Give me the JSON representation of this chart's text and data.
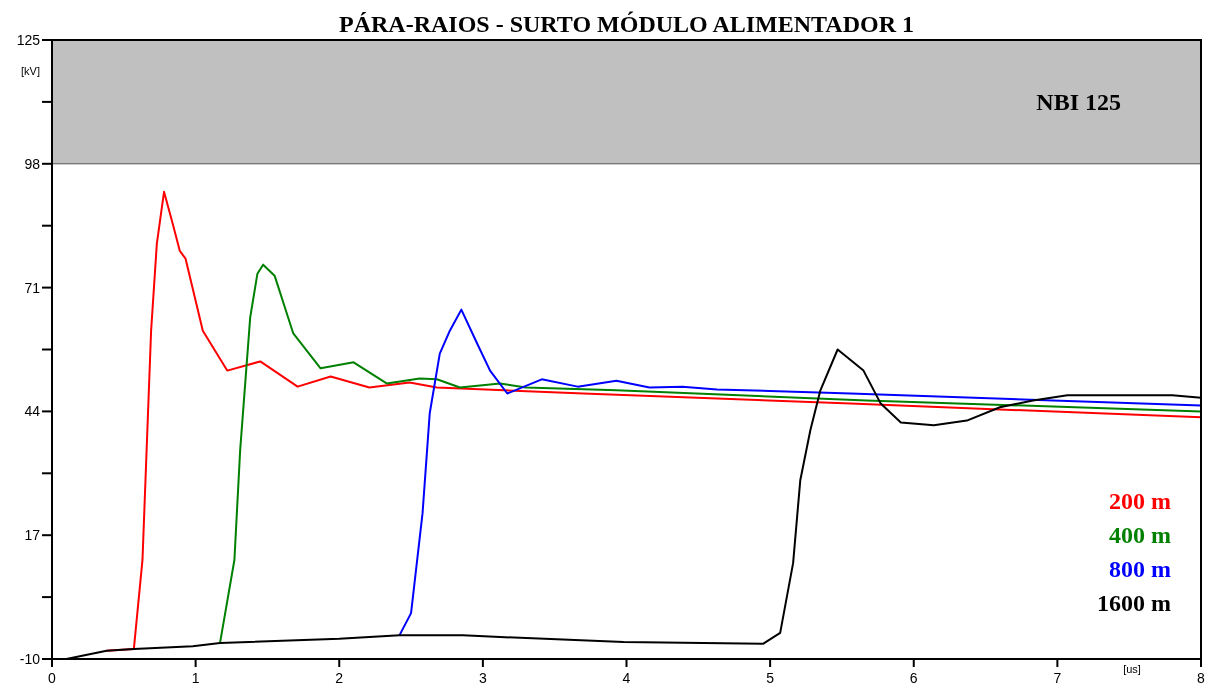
{
  "chart_data": {
    "type": "line",
    "title": "PÁRA-RAIOS - SURTO MÓDULO ALIMENTADOR 1",
    "xlabel": "[us]",
    "ylabel": "[kV]",
    "xlim": [
      0,
      8
    ],
    "xticks": [
      0,
      1,
      2,
      3,
      4,
      5,
      6,
      7,
      8
    ],
    "ylim": [
      -10,
      125
    ],
    "yticks": [
      -10,
      {
        "value": 3.5,
        "label": null
      },
      17,
      {
        "value": 30.5,
        "label": null
      },
      44,
      {
        "value": 57.5,
        "label": null
      },
      71,
      {
        "value": 84.5,
        "label": null
      },
      98,
      {
        "value": 111.5,
        "label": null
      },
      125
    ],
    "grid": false,
    "legend": "bottom right",
    "marker": "none",
    "line_style": "solid",
    "bands": [
      {
        "axis": "y",
        "from": 98,
        "to": 125,
        "label": "NBI 125",
        "color": "#c0c0c0"
      }
    ],
    "series": [
      {
        "name": "200 m",
        "color": "#ff0000",
        "x": [
          0.38,
          0.57,
          0.63,
          0.69,
          0.73,
          0.78,
          0.84,
          0.89,
          0.93,
          1.05,
          1.22,
          1.45,
          1.71,
          1.94,
          2.21,
          2.49,
          2.68,
          3.7,
          5.56,
          8
        ],
        "values": [
          -8.2,
          -7.8,
          11.6,
          61.6,
          80.6,
          91.9,
          85,
          79,
          77.3,
          61.6,
          52.9,
          54.9,
          49.4,
          51.6,
          49.2,
          50.3,
          49.2,
          47.9,
          45.7,
          42.7
        ]
      },
      {
        "name": "400 m",
        "color": "#008000",
        "x": [
          1.17,
          1.27,
          1.31,
          1.38,
          1.43,
          1.47,
          1.55,
          1.68,
          1.87,
          2.1,
          2.33,
          2.56,
          2.68,
          2.84,
          3.12,
          3.3,
          3.93,
          5.67,
          8
        ],
        "values": [
          -6.5,
          11.6,
          35.5,
          64.5,
          74,
          76,
          73.6,
          61,
          53.4,
          54.7,
          50.1,
          51.2,
          51,
          49.2,
          50.1,
          49.2,
          48.6,
          46.4,
          44
        ]
      },
      {
        "name": "800 m",
        "color": "#0000ff",
        "x": [
          2.42,
          2.5,
          2.58,
          2.63,
          2.7,
          2.77,
          2.85,
          2.96,
          3.05,
          3.17,
          3.41,
          3.66,
          3.93,
          4.16,
          4.39,
          4.63,
          5.56,
          8
        ],
        "values": [
          -4.8,
          0,
          21.8,
          43.6,
          56.6,
          61.6,
          66.2,
          58.8,
          52.9,
          47.9,
          51,
          49.4,
          50.7,
          49.2,
          49.4,
          48.8,
          47.9,
          45.3
        ]
      },
      {
        "name": "1600 m",
        "color": "#000000",
        "x": [
          0,
          0.1,
          0.38,
          0.57,
          0.98,
          1.17,
          2.0,
          2.42,
          2.86,
          3.12,
          3.98,
          4.95,
          5.07,
          5.16,
          5.21,
          5.28,
          5.35,
          5.47,
          5.65,
          5.77,
          5.91,
          6.14,
          6.37,
          6.6,
          6.83,
          7.07,
          7.8,
          8
        ],
        "values": [
          -10,
          -10,
          -8.2,
          -7.8,
          -7.2,
          -6.5,
          -5.6,
          -4.8,
          -4.8,
          -5.2,
          -6.3,
          -6.7,
          -4.3,
          10.9,
          29,
          39.9,
          48.6,
          57.5,
          52.9,
          45.7,
          41.6,
          41,
          42,
          44.9,
          46.4,
          47.5,
          47.5,
          47
        ]
      }
    ]
  }
}
